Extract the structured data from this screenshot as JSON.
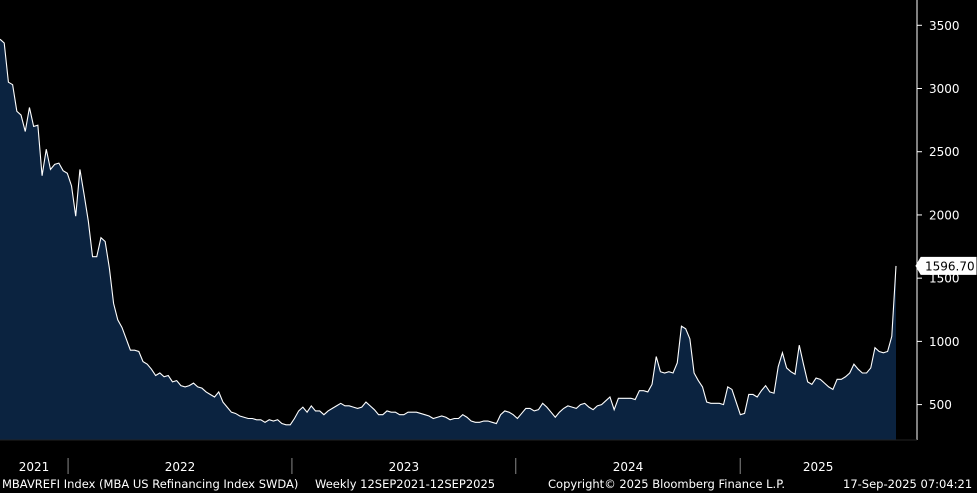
{
  "chart_data": {
    "type": "area",
    "series": [
      {
        "values": [
          3390,
          3360,
          3050,
          3030,
          2820,
          2790,
          2660,
          2850,
          2700,
          2710,
          2310,
          2520,
          2360,
          2400,
          2410,
          2350,
          2330,
          2230,
          1990,
          2360,
          2160,
          1950,
          1670,
          1670,
          1820,
          1790,
          1580,
          1300,
          1170,
          1110,
          1020,
          930,
          930,
          920,
          840,
          820,
          780,
          730,
          750,
          720,
          730,
          680,
          690,
          650,
          640,
          650,
          670,
          640,
          630,
          600,
          580,
          560,
          600,
          520,
          480,
          440,
          430,
          410,
          400,
          390,
          390,
          380,
          380,
          360,
          380,
          370,
          380,
          350,
          340,
          340,
          390,
          450,
          480,
          440,
          490,
          450,
          450,
          420,
          450,
          470,
          490,
          510,
          490,
          490,
          480,
          470,
          480,
          520,
          490,
          460,
          420,
          420,
          450,
          440,
          440,
          420,
          420,
          440,
          440,
          440,
          430,
          420,
          410,
          390,
          400,
          410,
          400,
          380,
          390,
          390,
          420,
          400,
          370,
          360,
          360,
          370,
          370,
          360,
          350,
          420,
          450,
          440,
          420,
          390,
          430,
          470,
          470,
          450,
          460,
          510,
          480,
          440,
          400,
          440,
          470,
          490,
          480,
          470,
          500,
          510,
          480,
          460,
          490,
          500,
          530,
          560,
          460,
          550,
          550,
          550,
          550,
          540,
          610,
          610,
          600,
          660,
          880,
          760,
          750,
          760,
          750,
          830,
          1120,
          1100,
          1020,
          750,
          690,
          640,
          520,
          510,
          510,
          510,
          500,
          640,
          620,
          520,
          420,
          430,
          580,
          580,
          560,
          610,
          650,
          600,
          590,
          800,
          910,
          790,
          760,
          740,
          970,
          820,
          680,
          660,
          710,
          700,
          670,
          640,
          620,
          700,
          700,
          720,
          750,
          820,
          780,
          750,
          750,
          790,
          950,
          920,
          910,
          920,
          1040,
          1596.7
        ]
      }
    ],
    "x_start": "2021-09-12",
    "x_end": "2025-09-12",
    "x_tick_labels": [
      "2021",
      "2022",
      "2023",
      "2024",
      "2025"
    ],
    "ylim": [
      220,
      3700
    ],
    "y_ticks": [
      500,
      1000,
      1500,
      2000,
      2500,
      3000,
      3500
    ],
    "last_value_label": "1596.70",
    "grid": false
  },
  "footer": {
    "ticker": "MBAVREFI Index (MBA US Refinancing Index SWDA)",
    "range": "Weekly 12SEP2021-12SEP2025",
    "copyright": "Copyright© 2025 Bloomberg Finance L.P.",
    "timestamp": "17-Sep-2025 07:04:21"
  },
  "colors": {
    "background": "#000000",
    "area_fill": "#0b2340",
    "line": "#ffffff",
    "axis": "#ffffff"
  }
}
